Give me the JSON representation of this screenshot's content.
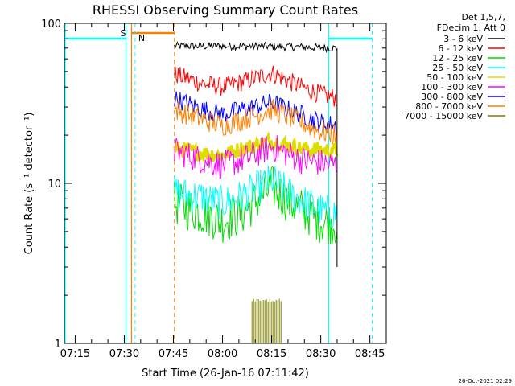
{
  "chart_data": {
    "type": "line",
    "title": "RHESSI Observing Summary Count Rates",
    "xlabel": "Start Time (26-Jan-16 07:11:42)",
    "ylabel": "Count Rate (s⁻¹ detector⁻¹)",
    "ylog": true,
    "ylim": [
      1,
      100
    ],
    "xlim": [
      "07:11:42",
      "08:50:00"
    ],
    "x_ticks": [
      "07:15",
      "07:30",
      "07:45",
      "08:00",
      "08:15",
      "08:30",
      "08:45"
    ],
    "y_ticks": [
      "1",
      "10",
      "100"
    ],
    "legend_header": [
      "Det 1,5,7,",
      "FDecim 1, Att 0"
    ],
    "legend_position": "right",
    "grid": false,
    "series": [
      {
        "name": "3 - 6 keV",
        "color": "#000000",
        "values": [
          [
            7.755,
            72
          ],
          [
            8.0,
            72
          ],
          [
            8.2,
            72
          ],
          [
            8.4,
            71
          ],
          [
            8.583,
            70
          ]
        ]
      },
      {
        "name": "6 - 12 keV",
        "color": "#ff0000",
        "values": [
          [
            7.755,
            48
          ],
          [
            7.9,
            42
          ],
          [
            8.0,
            40
          ],
          [
            8.1,
            43
          ],
          [
            8.25,
            49
          ],
          [
            8.4,
            40
          ],
          [
            8.5,
            36
          ],
          [
            8.583,
            34
          ]
        ]
      },
      {
        "name": "12 - 25 keV",
        "color": "#00dd00",
        "values": [
          [
            7.755,
            7.5
          ],
          [
            7.9,
            6.5
          ],
          [
            8.0,
            5.8
          ],
          [
            8.1,
            6.5
          ],
          [
            8.25,
            9.5
          ],
          [
            8.35,
            7.5
          ],
          [
            8.5,
            5.8
          ],
          [
            8.583,
            5.6
          ]
        ]
      },
      {
        "name": "25 - 50 keV",
        "color": "#00ffff",
        "values": [
          [
            7.755,
            8.8
          ],
          [
            7.9,
            8.2
          ],
          [
            8.0,
            7.5
          ],
          [
            8.1,
            8.3
          ],
          [
            8.25,
            10.5
          ],
          [
            8.35,
            8.5
          ],
          [
            8.5,
            6.8
          ],
          [
            8.583,
            6.5
          ]
        ]
      },
      {
        "name": "50 - 100 keV",
        "color": "#dddd00",
        "values": [
          [
            7.755,
            16.5
          ],
          [
            7.9,
            15.5
          ],
          [
            8.0,
            15
          ],
          [
            8.1,
            16.5
          ],
          [
            8.25,
            18.5
          ],
          [
            8.4,
            16.5
          ],
          [
            8.583,
            16
          ]
        ]
      },
      {
        "name": "100 - 300 keV",
        "color": "#ff00ff",
        "values": [
          [
            7.755,
            16
          ],
          [
            7.9,
            14
          ],
          [
            8.0,
            13
          ],
          [
            8.1,
            14
          ],
          [
            8.25,
            17
          ],
          [
            8.4,
            14
          ],
          [
            8.583,
            13
          ]
        ]
      },
      {
        "name": "300 - 800 keV",
        "color": "#0000ff",
        "values": [
          [
            7.755,
            34
          ],
          [
            7.9,
            29
          ],
          [
            8.0,
            27
          ],
          [
            8.1,
            29
          ],
          [
            8.25,
            32
          ],
          [
            8.4,
            27
          ],
          [
            8.5,
            24
          ],
          [
            8.583,
            23
          ]
        ]
      },
      {
        "name": "800 - 7000 keV",
        "color": "#ff8000",
        "values": [
          [
            7.755,
            29
          ],
          [
            7.9,
            25
          ],
          [
            8.0,
            23
          ],
          [
            8.1,
            25
          ],
          [
            8.25,
            29
          ],
          [
            8.4,
            24
          ],
          [
            8.5,
            21
          ],
          [
            8.583,
            20
          ]
        ]
      },
      {
        "name": "7000 - 15000 keV",
        "color": "#808000",
        "values": [
          [
            8.15,
            1.9
          ],
          [
            8.2,
            1.9
          ],
          [
            8.25,
            1.9
          ],
          [
            8.3,
            1.9
          ]
        ]
      }
    ],
    "markers": [
      {
        "label": "S",
        "color": "#ff8000"
      },
      {
        "label": "N",
        "color": "#00ffff"
      }
    ],
    "timestamp": "26-Oct-2021 02:29"
  }
}
